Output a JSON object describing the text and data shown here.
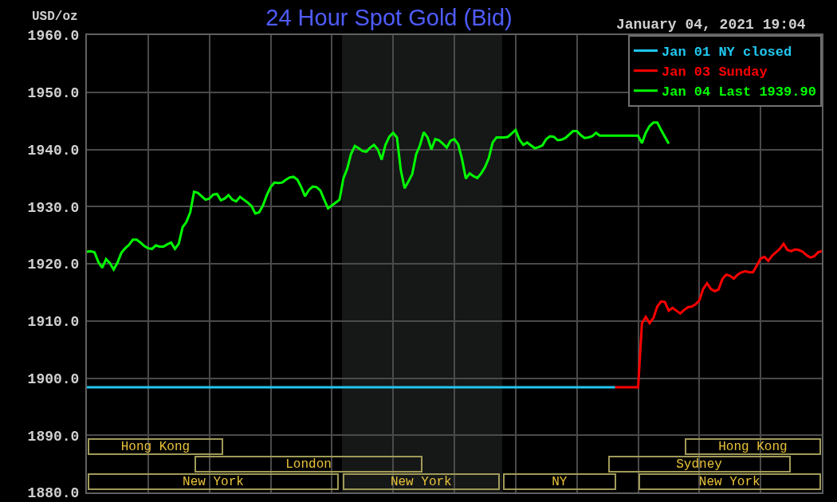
{
  "chart_data": {
    "type": "line",
    "title": "24 Hour Spot Gold (Bid)",
    "ylabel": "USD/oz",
    "annotations": [
      "January 04, 2021 19:04",
      "Hong Kong",
      "Hong Kong",
      "London",
      "Sydney",
      "New York",
      "New York",
      "NY",
      "New York"
    ],
    "categories": [
      null,
      null,
      null,
      null,
      null,
      null,
      null,
      null,
      null,
      null,
      null,
      null,
      null,
      null,
      null,
      null,
      null,
      null,
      null,
      null,
      null,
      null,
      null,
      null,
      null,
      null,
      null,
      null,
      null,
      null,
      null,
      null,
      null,
      null,
      null,
      null,
      null,
      null,
      null,
      null,
      null,
      null,
      null,
      null,
      null,
      null,
      null,
      null,
      null,
      null,
      null,
      null,
      null,
      null,
      null,
      null,
      null,
      null,
      null,
      null,
      null,
      null,
      null,
      null,
      null,
      null,
      null,
      null,
      null,
      null,
      null,
      null,
      null,
      null,
      null,
      null,
      null,
      null,
      null,
      null,
      null,
      null,
      null,
      null,
      null,
      null,
      null,
      null,
      null,
      null,
      null,
      null,
      null,
      null,
      null,
      null,
      null,
      null,
      null,
      null,
      null,
      null,
      null,
      null,
      null,
      null,
      null,
      null,
      null,
      null,
      null,
      null,
      null,
      null,
      null,
      null,
      null,
      null,
      null,
      null,
      null,
      null,
      null,
      null,
      null,
      null,
      null,
      null,
      null,
      null,
      null,
      null,
      null,
      null,
      null,
      null,
      null,
      null,
      null,
      null,
      null,
      null,
      null,
      null,
      null,
      null,
      null,
      null,
      null,
      null,
      null,
      null,
      null,
      null,
      null,
      null,
      null,
      null,
      null,
      null,
      null,
      null,
      null,
      null,
      null,
      null,
      null,
      null,
      null,
      null,
      null,
      null,
      null,
      null,
      null,
      null,
      null,
      null,
      null,
      null,
      null,
      null,
      null,
      null,
      null,
      null,
      null,
      null,
      null,
      null,
      null,
      null,
      null
    ],
    "ylim": [
      1880,
      1960
    ],
    "yticks": [
      {
        "value": 1880,
        "label": "1880.0"
      },
      {
        "value": 1890,
        "label": "1890.0"
      },
      {
        "value": 1900,
        "label": "1900.0"
      },
      {
        "value": 1910,
        "label": "1910.0"
      },
      {
        "value": 1920,
        "label": "1920.0"
      },
      {
        "value": 1930,
        "label": "1930.0"
      },
      {
        "value": 1940,
        "label": "1940.0"
      },
      {
        "value": 1950,
        "label": "1950.0"
      },
      {
        "value": 1960,
        "label": "1960.0"
      }
    ],
    "grid": true,
    "legend": "top right",
    "tick_labels": "y",
    "series": [
      {
        "name": "Jan 01 NY closed",
        "color": "#20c8f0",
        "values": [
          1898.4,
          1898.4,
          1898.4,
          1898.4,
          1898.4,
          1898.4,
          1898.4,
          1898.4,
          1898.4,
          1898.4,
          1898.4,
          1898.4,
          1898.4,
          1898.4,
          1898.4,
          1898.4,
          1898.4,
          1898.4,
          1898.4,
          1898.4,
          1898.4,
          1898.4,
          1898.4,
          1898.4,
          1898.4,
          1898.4,
          1898.4,
          1898.4,
          1898.4,
          1898.4,
          1898.4,
          1898.4,
          1898.4,
          1898.4,
          1898.4,
          1898.4,
          1898.4,
          1898.4,
          1898.4,
          1898.4,
          1898.4,
          1898.4,
          1898.4,
          1898.4,
          1898.4,
          1898.4,
          1898.4,
          1898.4,
          1898.4,
          1898.4,
          1898.4,
          1898.4,
          1898.4,
          1898.4,
          1898.4,
          1898.4,
          1898.4,
          1898.4,
          1898.4,
          1898.4,
          1898.4,
          1898.4,
          1898.4,
          1898.4,
          1898.4,
          1898.4,
          1898.4,
          1898.4,
          1898.4,
          1898.4,
          1898.4,
          1898.4,
          1898.4,
          1898.4,
          1898.4,
          1898.4,
          1898.4,
          1898.4,
          1898.4,
          1898.4,
          1898.4,
          1898.4,
          1898.4,
          1898.4,
          1898.4,
          1898.4,
          1898.4,
          1898.4,
          1898.4,
          1898.4,
          1898.4,
          1898.4,
          1898.4,
          1898.4,
          1898.4,
          1898.4,
          1898.4,
          1898.4,
          1898.4,
          1898.4,
          1898.4,
          1898.4,
          1898.4,
          1898.4,
          1898.4,
          1898.4,
          1898.4,
          1898.4,
          1898.4,
          1898.4,
          1898.4,
          1898.4,
          1898.4,
          1898.4,
          1898.4,
          1898.4,
          1898.4,
          1898.4,
          1898.4,
          1898.4,
          1898.4,
          1898.4,
          1898.4,
          1898.4,
          1898.4,
          1898.4,
          1898.4,
          1898.4,
          1898.4,
          1898.4,
          1898.4,
          1898.4,
          1898.4,
          1898.4,
          1898.4,
          1898.4,
          1898.4,
          1898.4,
          1898.4,
          null,
          null,
          null,
          null,
          null,
          null,
          null,
          null,
          null,
          null,
          null,
          null,
          null,
          null,
          null,
          null,
          null,
          null,
          null,
          null,
          null,
          null,
          null,
          null,
          null,
          null,
          null,
          null,
          null,
          null,
          null,
          null,
          null,
          null,
          null,
          null,
          null,
          null,
          null,
          null,
          null,
          null,
          null,
          null,
          null,
          null,
          null,
          null,
          null,
          null,
          null,
          null,
          null,
          null
        ]
      },
      {
        "name": "Jan 03 Sunday",
        "color": "#ff0000",
        "values": [
          null,
          null,
          null,
          null,
          null,
          null,
          null,
          null,
          null,
          null,
          null,
          null,
          null,
          null,
          null,
          null,
          null,
          null,
          null,
          null,
          null,
          null,
          null,
          null,
          null,
          null,
          null,
          null,
          null,
          null,
          null,
          null,
          null,
          null,
          null,
          null,
          null,
          null,
          null,
          null,
          null,
          null,
          null,
          null,
          null,
          null,
          null,
          null,
          null,
          null,
          null,
          null,
          null,
          null,
          null,
          null,
          null,
          null,
          null,
          null,
          null,
          null,
          null,
          null,
          null,
          null,
          null,
          null,
          null,
          null,
          null,
          null,
          null,
          null,
          null,
          null,
          null,
          null,
          null,
          null,
          null,
          null,
          null,
          null,
          null,
          null,
          null,
          null,
          null,
          null,
          null,
          null,
          null,
          null,
          null,
          null,
          null,
          null,
          null,
          null,
          null,
          null,
          null,
          null,
          null,
          null,
          null,
          null,
          null,
          null,
          null,
          null,
          null,
          null,
          null,
          null,
          null,
          null,
          null,
          null,
          null,
          null,
          null,
          null,
          null,
          null,
          null,
          null,
          null,
          null,
          null,
          null,
          null,
          null,
          null,
          null,
          null,
          null,
          1898.4,
          1898.4,
          1898.4,
          1898.4,
          1898.4,
          1898.4,
          1898.4,
          1909.6,
          1910.7,
          1909.6,
          1910.5,
          1912.5,
          1913.4,
          1913.3,
          1911.8,
          1912.3,
          1911.8,
          1911.3,
          1911.9,
          1912.4,
          1912.5,
          1912.9,
          1913.6,
          1915.6,
          1916.6,
          1915.6,
          1915.2,
          1915.5,
          1917.3,
          1918.1,
          1917.9,
          1917.4,
          1918.1,
          1918.5,
          1918.7,
          1918.5,
          1918.5,
          1919.7,
          1920.9,
          1921.2,
          1920.5,
          1921.4,
          1922.0,
          1922.6,
          1923.5,
          1922.4,
          1922.2,
          1922.5,
          1922.4,
          1922.1,
          1921.5,
          1921.1,
          1921.3,
          1922.0,
          1922.2
        ]
      },
      {
        "name": "Jan 04 Last 1939.90",
        "color": "#00ff00",
        "values": [
          1922.1,
          1922.2,
          1922.0,
          1920.3,
          1919.3,
          1920.8,
          1920.1,
          1919.0,
          1920.2,
          1921.9,
          1922.7,
          1923.3,
          1924.2,
          1924.2,
          1923.7,
          1923.1,
          1922.7,
          1922.6,
          1923.2,
          1923.0,
          1923.0,
          1923.4,
          1923.7,
          1922.6,
          1923.5,
          1926.4,
          1927.3,
          1929.0,
          1932.6,
          1932.4,
          1931.8,
          1931.2,
          1931.4,
          1932.1,
          1932.2,
          1931.1,
          1931.4,
          1932.0,
          1931.2,
          1930.9,
          1931.7,
          1931.2,
          1930.7,
          1930.1,
          1928.8,
          1929.0,
          1930.2,
          1932.0,
          1933.4,
          1934.2,
          1934.1,
          1934.2,
          1934.7,
          1935.1,
          1935.2,
          1934.7,
          1933.4,
          1931.8,
          1932.9,
          1933.5,
          1933.4,
          1932.8,
          1931.2,
          1929.7,
          1930.2,
          1930.7,
          1931.2,
          1934.9,
          1936.6,
          1939.2,
          1940.6,
          1940.2,
          1939.7,
          1939.6,
          1940.3,
          1940.8,
          1940.0,
          1938.2,
          1940.8,
          1942.2,
          1942.9,
          1942.1,
          1936.4,
          1933.2,
          1934.4,
          1935.7,
          1939.1,
          1940.7,
          1943.0,
          1942.1,
          1940.0,
          1941.8,
          1941.6,
          1941.0,
          1940.3,
          1941.5,
          1941.8,
          1940.9,
          1938.3,
          1934.9,
          1935.8,
          1935.3,
          1935.0,
          1935.8,
          1936.9,
          1938.5,
          1941.2,
          1942.1,
          1942.1,
          1942.1,
          1942.2,
          1942.8,
          1943.4,
          1941.7,
          1940.8,
          1941.2,
          1940.7,
          1940.2,
          1940.4,
          1940.7,
          1941.8,
          1942.3,
          1942.2,
          1941.6,
          1941.7,
          1942.0,
          1942.6,
          1943.2,
          1943.2,
          1942.5,
          1942.0,
          1942.1,
          1942.3,
          1942.9,
          1942.4,
          1942.4,
          1942.4,
          1942.4,
          1942.4,
          1942.4,
          1942.4,
          1942.4,
          1942.4,
          1942.4,
          1942.4,
          1941.1,
          1942.9,
          1944.1,
          1944.7,
          1944.7,
          1943.4,
          1942.2,
          1941.0,
          null,
          null,
          null,
          null,
          null,
          null,
          null,
          null,
          null,
          null,
          null,
          null,
          null,
          null,
          null,
          null,
          null,
          null,
          null,
          null,
          null,
          null,
          null,
          null,
          null,
          null,
          null,
          null,
          null,
          null,
          null,
          null,
          null,
          null,
          null,
          null,
          null,
          null,
          null,
          null
        ]
      }
    ]
  }
}
